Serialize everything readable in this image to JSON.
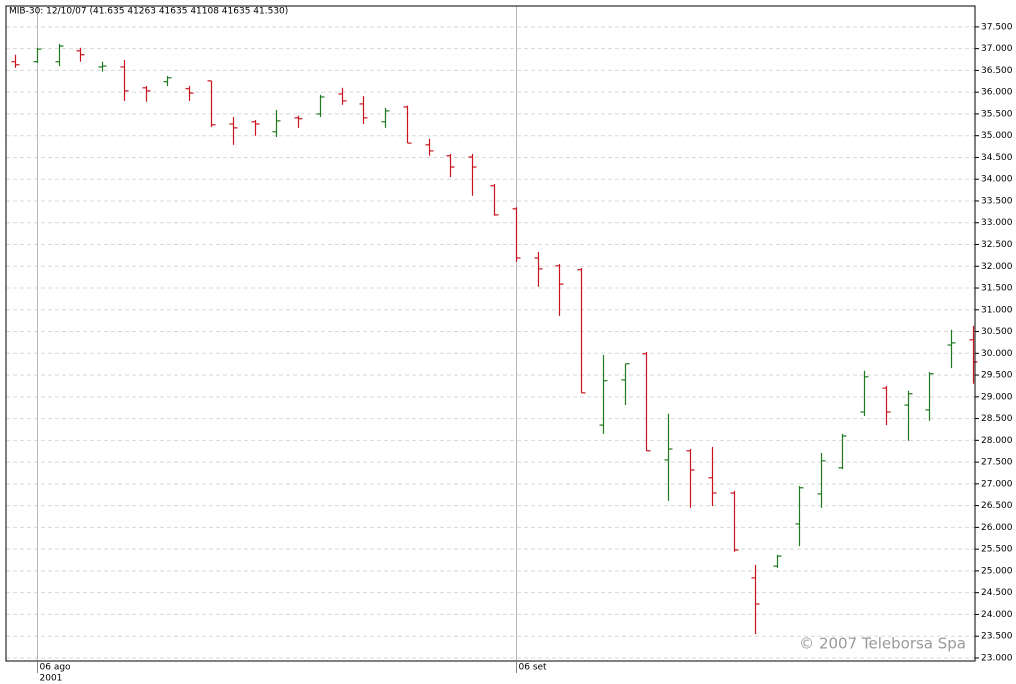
{
  "chart_data": {
    "type": "ohlc",
    "title": "MIB-30: 12/10/07 (41.635  41263  41635  41108  41635  41.530)",
    "watermark": "© 2007 Teleborsa Spa",
    "year_label": "2001",
    "categories": [
      null,
      "06 ago",
      null,
      null,
      null,
      null,
      null,
      null,
      null,
      null,
      null,
      null,
      null,
      null,
      null,
      null,
      null,
      null,
      null,
      null,
      null,
      null,
      null,
      "06 set",
      null,
      null,
      null,
      null,
      null,
      null,
      null,
      null,
      null,
      null,
      null,
      null,
      null,
      null,
      null,
      null,
      null,
      null,
      null,
      null,
      null
    ],
    "open": [
      36700,
      36700,
      36700,
      36950,
      36580,
      36580,
      36100,
      36240,
      36080,
      36260,
      35270,
      35320,
      35090,
      35410,
      35500,
      35960,
      35730,
      35320,
      35660,
      34790,
      34540,
      34510,
      33850,
      33320,
      32190,
      32010,
      31920,
      28350,
      29390,
      29990,
      27550,
      27760,
      27140,
      26790,
      24840,
      25110,
      26080,
      26770,
      27370,
      28650,
      29200,
      28810,
      28700,
      30190,
      30310
    ],
    "high": [
      36860,
      37020,
      37110,
      37020,
      36700,
      36740,
      36140,
      36370,
      36140,
      36260,
      35430,
      35360,
      35590,
      35460,
      35940,
      36100,
      35910,
      35640,
      35690,
      34930,
      34580,
      34580,
      33890,
      33360,
      32330,
      32050,
      31960,
      29960,
      29760,
      30030,
      28610,
      27800,
      27850,
      26840,
      25140,
      25370,
      26950,
      27710,
      28150,
      29600,
      29250,
      29140,
      29570,
      30540,
      30630
    ],
    "low": [
      36560,
      36670,
      36600,
      36700,
      36470,
      35800,
      35780,
      36140,
      35800,
      35200,
      34790,
      35000,
      34970,
      35180,
      35430,
      35710,
      35270,
      35180,
      34830,
      34540,
      34050,
      33620,
      33160,
      32100,
      31530,
      30860,
      29090,
      28150,
      28810,
      27760,
      26610,
      26450,
      26490,
      25440,
      23550,
      25070,
      25570,
      26450,
      27340,
      28560,
      28350,
      27990,
      28450,
      29660,
      29300
    ],
    "close": [
      36630,
      36990,
      37060,
      36860,
      36600,
      36030,
      36030,
      36330,
      35980,
      35250,
      35180,
      35270,
      35340,
      35390,
      35890,
      35800,
      35410,
      35570,
      34830,
      34650,
      34280,
      34280,
      33180,
      32190,
      31940,
      31590,
      29090,
      29370,
      29760,
      27760,
      27800,
      27320,
      26790,
      25480,
      24240,
      25340,
      26910,
      27530,
      28100,
      29460,
      28650,
      29070,
      29530,
      30240,
      29800
    ],
    "up_color": "#1f7a1f",
    "down_color": "#c8141e",
    "ylim": [
      22930,
      37980
    ],
    "yticks": [
      {
        "value": 23000,
        "label": "23.000"
      },
      {
        "value": 23500,
        "label": "23.500"
      },
      {
        "value": 24000,
        "label": "24.000"
      },
      {
        "value": 24500,
        "label": "24.500"
      },
      {
        "value": 25000,
        "label": "25.000"
      },
      {
        "value": 25500,
        "label": "25.500"
      },
      {
        "value": 26000,
        "label": "26.000"
      },
      {
        "value": 26500,
        "label": "26.500"
      },
      {
        "value": 27000,
        "label": "27.000"
      },
      {
        "value": 27500,
        "label": "27.500"
      },
      {
        "value": 28000,
        "label": "28.000"
      },
      {
        "value": 28500,
        "label": "28.500"
      },
      {
        "value": 29000,
        "label": "29.000"
      },
      {
        "value": 29500,
        "label": "29.500"
      },
      {
        "value": 30000,
        "label": "30.000"
      },
      {
        "value": 30500,
        "label": "30.500"
      },
      {
        "value": 31000,
        "label": "31.000"
      },
      {
        "value": 31500,
        "label": "31.500"
      },
      {
        "value": 32000,
        "label": "32.000"
      },
      {
        "value": 32500,
        "label": "32.500"
      },
      {
        "value": 33000,
        "label": "33.000"
      },
      {
        "value": 33500,
        "label": "33.500"
      },
      {
        "value": 34000,
        "label": "34.000"
      },
      {
        "value": 34500,
        "label": "34.500"
      },
      {
        "value": 35000,
        "label": "35.000"
      },
      {
        "value": 35500,
        "label": "35.500"
      },
      {
        "value": 36000,
        "label": "36.000"
      },
      {
        "value": 36500,
        "label": "36.500"
      },
      {
        "value": 37000,
        "label": "37.000"
      },
      {
        "value": 37500,
        "label": "37.500"
      }
    ],
    "grid": true
  }
}
